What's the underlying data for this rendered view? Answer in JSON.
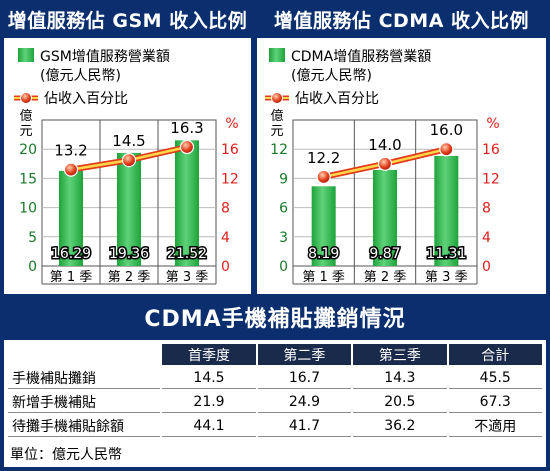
{
  "colors": {
    "navy": "#0a2e6e",
    "bar": "#1ea33a",
    "bar_light": "#5fd27a",
    "line": "#e23c1a",
    "line_fill": "#ffd84a",
    "red_axis": "#e0201c"
  },
  "charts": {
    "gsm": {
      "title": "增值服務佔 GSM 收入比例",
      "legend_bar": "GSM增值服務營業額",
      "legend_bar_unit": "(億元人民幣)",
      "legend_line": "佔收入百分比",
      "left_axis_unit": "億元",
      "right_axis_unit": "%"
    },
    "cdma": {
      "title": "增值服務佔 CDMA 收入比例",
      "legend_bar": "CDMA增值服務營業額",
      "legend_bar_unit": "(億元人民幣)",
      "legend_line": "佔收入百分比",
      "left_axis_unit": "億元",
      "right_axis_unit": "%"
    }
  },
  "chart_data": [
    {
      "type": "bar",
      "title": "增值服務佔 GSM 收入比例",
      "categories": [
        "第 1 季",
        "第 2 季",
        "第 3 季"
      ],
      "series": [
        {
          "name": "GSM增值服務營業額",
          "axis": "left",
          "values": [
            16.29,
            19.36,
            21.52
          ],
          "labels": [
            "16.29",
            "19.36",
            "21.52"
          ]
        },
        {
          "name": "佔收入百分比",
          "type": "line",
          "axis": "right",
          "values": [
            13.2,
            14.5,
            16.3
          ],
          "labels": [
            "13.2",
            "14.5",
            "16.3"
          ]
        }
      ],
      "ylim_left": [
        0,
        25
      ],
      "yticks_left": [
        "0",
        "5",
        "10",
        "15",
        "20"
      ],
      "ylim_right": [
        0,
        20
      ],
      "yticks_right": [
        "0",
        "4",
        "8",
        "12",
        "16"
      ],
      "grid": true
    },
    {
      "type": "bar",
      "title": "增值服務佔 CDMA 收入比例",
      "categories": [
        "第 1 季",
        "第 2 季",
        "第 3 季"
      ],
      "series": [
        {
          "name": "CDMA增值服務營業額",
          "axis": "left",
          "values": [
            8.19,
            9.87,
            11.31
          ],
          "labels": [
            "8.19",
            "9.87",
            "11.31"
          ]
        },
        {
          "name": "佔收入百分比",
          "type": "line",
          "axis": "right",
          "values": [
            12.2,
            14.0,
            16.0
          ],
          "labels": [
            "12.2",
            "14.0",
            "16.0"
          ]
        }
      ],
      "ylim_left": [
        0,
        15
      ],
      "yticks_left": [
        "0",
        "3",
        "6",
        "9",
        "12"
      ],
      "ylim_right": [
        0,
        20
      ],
      "yticks_right": [
        "0",
        "4",
        "8",
        "12",
        "16"
      ],
      "grid": true
    }
  ],
  "table": {
    "title": "CDMA手機補貼攤銷情況",
    "headers": [
      "",
      "首季度",
      "第二季",
      "第三季",
      "合計"
    ],
    "rows": [
      [
        "手機補貼攤銷",
        "14.5",
        "16.7",
        "14.3",
        "45.5"
      ],
      [
        "新增手機補貼",
        "21.9",
        "24.9",
        "20.5",
        "67.3"
      ],
      [
        "待攤手機補貼餘額",
        "44.1",
        "41.7",
        "36.2",
        "不適用"
      ]
    ],
    "unit": "單位：億元人民幣"
  }
}
